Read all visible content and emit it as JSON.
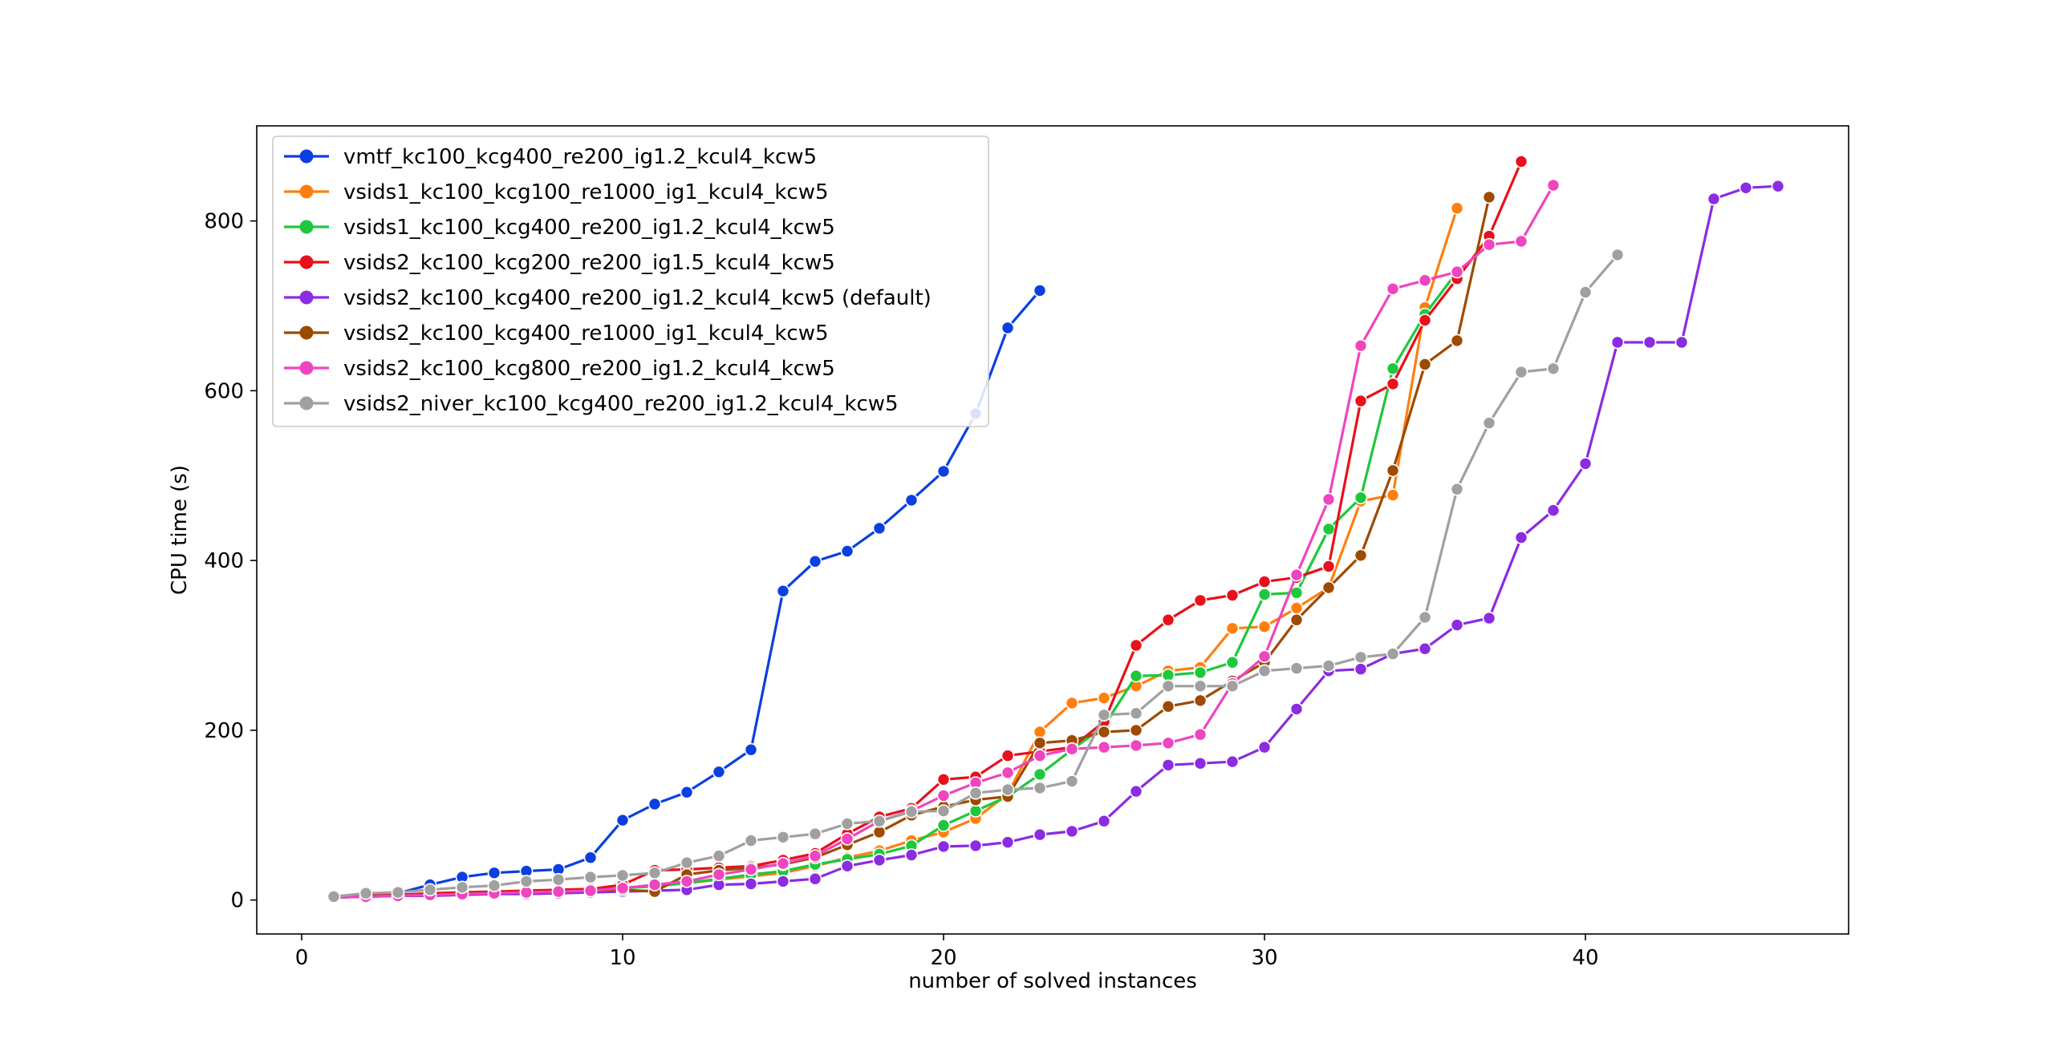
{
  "chart_data": {
    "type": "line",
    "title": "",
    "xlabel": "number of solved instances",
    "ylabel": "CPU time (s)",
    "xlim": [
      -1.4,
      48.2
    ],
    "ylim": [
      -40,
      912
    ],
    "xticks": [
      0,
      10,
      20,
      30,
      40
    ],
    "yticks": [
      0,
      200,
      400,
      600,
      800
    ],
    "grid": false,
    "legend_position": "upper-left",
    "markers": "circle",
    "series": [
      {
        "name": "vmtf_kc100_kcg400_re200_ig1.2_kcul4_kcw5",
        "color": "#0b3fe0",
        "x": [
          1,
          2,
          3,
          4,
          5,
          6,
          7,
          8,
          9,
          10,
          11,
          12,
          13,
          14,
          15,
          16,
          17,
          18,
          19,
          20,
          21,
          22,
          23
        ],
        "y": [
          4,
          6,
          8,
          18,
          27,
          32,
          34,
          36,
          50,
          94,
          113,
          127,
          151,
          177,
          364,
          399,
          411,
          438,
          471,
          505,
          573,
          674,
          718
        ]
      },
      {
        "name": "vsids1_kc100_kcg100_re1000_ig1_kcul4_kcw5",
        "color": "#ff7f0e",
        "x": [
          1,
          2,
          3,
          4,
          5,
          6,
          7,
          8,
          9,
          10,
          11,
          12,
          13,
          14,
          15,
          16,
          17,
          18,
          19,
          20,
          21,
          22,
          23,
          24,
          25,
          26,
          27,
          28,
          29,
          30,
          31,
          32,
          33,
          34,
          35,
          36
        ],
        "y": [
          3,
          5,
          6,
          7,
          8,
          9,
          10,
          11,
          12,
          14,
          17,
          20,
          24,
          28,
          32,
          40,
          50,
          58,
          70,
          80,
          96,
          125,
          198,
          232,
          238,
          252,
          270,
          274,
          320,
          322,
          344,
          368,
          470,
          477,
          698,
          815
        ]
      },
      {
        "name": "vsids1_kc100_kcg400_re200_ig1.2_kcul4_kcw5",
        "color": "#1ec83c",
        "x": [
          1,
          2,
          3,
          4,
          5,
          6,
          7,
          8,
          9,
          10,
          11,
          12,
          13,
          14,
          15,
          16,
          17,
          18,
          19,
          20,
          21,
          22,
          23,
          24,
          25,
          26,
          27,
          28,
          29,
          30,
          31,
          32,
          33,
          34,
          35,
          36
        ],
        "y": [
          3,
          5,
          6,
          7,
          8,
          9,
          10,
          11,
          12,
          14,
          16,
          20,
          25,
          30,
          34,
          42,
          48,
          54,
          64,
          88,
          105,
          122,
          148,
          177,
          205,
          264,
          265,
          268,
          280,
          360,
          362,
          437,
          474,
          626,
          690,
          740
        ]
      },
      {
        "name": "vsids2_kc100_kcg200_re200_ig1.5_kcul4_kcw5",
        "color": "#e8101b",
        "x": [
          1,
          2,
          3,
          4,
          5,
          6,
          7,
          8,
          9,
          10,
          11,
          12,
          13,
          14,
          15,
          16,
          17,
          18,
          19,
          20,
          21,
          22,
          23,
          24,
          25,
          26,
          27,
          28,
          29,
          30,
          31,
          32,
          33,
          34,
          35,
          36,
          37,
          38
        ],
        "y": [
          3,
          5,
          6,
          8,
          9,
          10,
          11,
          12,
          13,
          18,
          35,
          36,
          38,
          40,
          47,
          55,
          78,
          98,
          108,
          142,
          145,
          170,
          175,
          180,
          210,
          300,
          330,
          353,
          359,
          375,
          380,
          393,
          588,
          608,
          683,
          732,
          782,
          870
        ]
      },
      {
        "name": "vsids2_kc100_kcg400_re200_ig1.2_kcul4_kcw5 (default)",
        "color": "#8b2be2",
        "x": [
          1,
          2,
          3,
          4,
          5,
          6,
          7,
          8,
          9,
          10,
          11,
          12,
          13,
          14,
          15,
          16,
          17,
          18,
          19,
          20,
          21,
          22,
          23,
          24,
          25,
          26,
          27,
          28,
          29,
          30,
          31,
          32,
          33,
          34,
          35,
          36,
          37,
          38,
          39,
          40,
          41,
          42,
          43,
          44,
          45,
          46
        ],
        "y": [
          3,
          4,
          5,
          5,
          6,
          7,
          7,
          8,
          9,
          10,
          11,
          12,
          18,
          19,
          22,
          25,
          40,
          47,
          53,
          63,
          64,
          68,
          77,
          81,
          93,
          128,
          159,
          161,
          163,
          180,
          225,
          270,
          272,
          290,
          296,
          324,
          332,
          427,
          459,
          514,
          657,
          657,
          657,
          826,
          839,
          841
        ]
      },
      {
        "name": "vsids2_kc100_kcg400_re1000_ig1_kcul4_kcw5",
        "color": "#9e4a00",
        "x": [
          1,
          2,
          3,
          4,
          5,
          6,
          7,
          8,
          9,
          10,
          11,
          12,
          13,
          14,
          15,
          16,
          17,
          18,
          19,
          20,
          21,
          22,
          23,
          24,
          25,
          26,
          27,
          28,
          29,
          30,
          31,
          32,
          33,
          34,
          35,
          36,
          37
        ],
        "y": [
          3,
          4,
          5,
          6,
          7,
          8,
          9,
          10,
          11,
          12,
          10,
          30,
          35,
          38,
          42,
          50,
          65,
          80,
          100,
          110,
          118,
          122,
          185,
          188,
          198,
          200,
          228,
          235,
          258,
          280,
          330,
          368,
          406,
          506,
          631,
          659,
          828
        ]
      },
      {
        "name": "vsids2_kc100_kcg800_re200_ig1.2_kcul4_kcw5",
        "color": "#ef45be",
        "x": [
          1,
          2,
          3,
          4,
          5,
          6,
          7,
          8,
          9,
          10,
          11,
          12,
          13,
          14,
          15,
          16,
          17,
          18,
          19,
          20,
          21,
          22,
          23,
          24,
          25,
          26,
          27,
          28,
          29,
          30,
          31,
          32,
          33,
          34,
          35,
          36,
          37,
          38,
          39
        ],
        "y": [
          3,
          4,
          5,
          6,
          7,
          8,
          9,
          10,
          11,
          14,
          18,
          22,
          30,
          36,
          43,
          52,
          72,
          93,
          105,
          123,
          138,
          150,
          170,
          178,
          180,
          182,
          185,
          195,
          255,
          287,
          383,
          472,
          653,
          720,
          730,
          740,
          772,
          776,
          842
        ]
      },
      {
        "name": "vsids2_niver_kc100_kcg400_re200_ig1.2_kcul4_kcw5",
        "color": "#a0a0a0",
        "x": [
          1,
          2,
          3,
          4,
          5,
          6,
          7,
          8,
          9,
          10,
          11,
          12,
          13,
          14,
          15,
          16,
          17,
          18,
          19,
          20,
          21,
          22,
          23,
          24,
          25,
          26,
          27,
          28,
          29,
          30,
          31,
          32,
          33,
          34,
          35,
          36,
          37,
          38,
          39,
          40,
          41
        ],
        "y": [
          4,
          8,
          9,
          12,
          15,
          17,
          22,
          24,
          27,
          29,
          32,
          44,
          52,
          70,
          74,
          78,
          90,
          93,
          104,
          105,
          126,
          130,
          132,
          140,
          218,
          220,
          252,
          252,
          252,
          270,
          273,
          276,
          286,
          290,
          333,
          484,
          562,
          622,
          626,
          716,
          760
        ]
      }
    ]
  }
}
